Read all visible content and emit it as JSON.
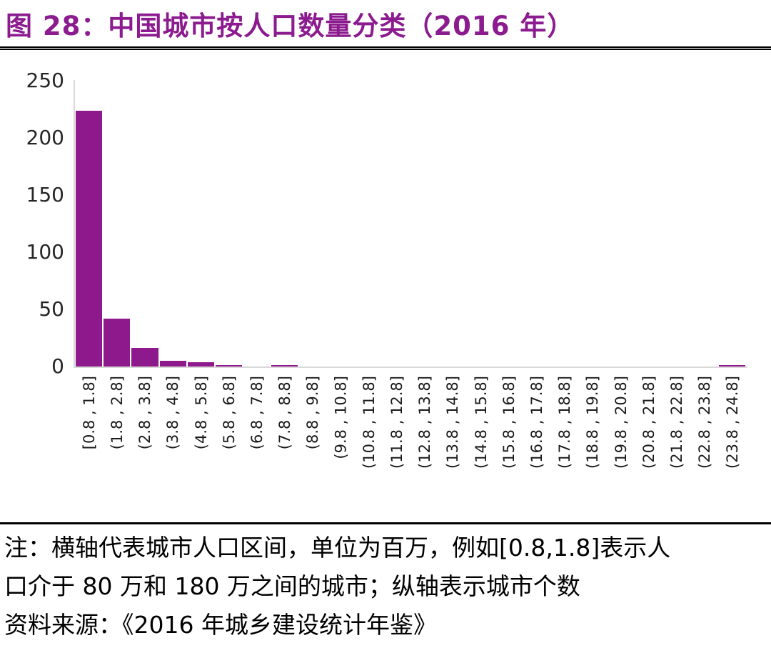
{
  "title": "图 28：中国城市按人口数量分类（2016 年）",
  "colors": {
    "title": "#8B1B8F",
    "bar": "#8E198C",
    "axis": "#D9D9D9",
    "tick_text": "#262626",
    "note_text": "#000000"
  },
  "chart_data": {
    "type": "bar",
    "title": "中国城市按人口数量分类（2016 年）",
    "xlabel": "",
    "ylabel": "",
    "categories": [
      "[0.8 , 1.8]",
      "(1.8 , 2.8]",
      "(2.8 , 3.8]",
      "(3.8 , 4.8]",
      "(4.8 , 5.8]",
      "(5.8 , 6.8]",
      "(6.8 , 7.8]",
      "(7.8 , 8.8]",
      "(8.8 , 9.8]",
      "(9.8 , 10.8]",
      "(10.8 , 11.8]",
      "(11.8 , 12.8]",
      "(12.8 , 13.8]",
      "(13.8 , 14.8]",
      "(14.8 , 15.8]",
      "(15.8 , 16.8]",
      "(16.8 , 17.8]",
      "(17.8 , 18.8]",
      "(18.8 , 19.8]",
      "(19.8 , 20.8]",
      "(20.8 , 21.8]",
      "(21.8 , 22.8]",
      "(22.8 , 23.8]",
      "(23.8 , 24.8]"
    ],
    "values": [
      224,
      42,
      16,
      5,
      4,
      1,
      0,
      1,
      0,
      0,
      0,
      0,
      0,
      0,
      0,
      0,
      0,
      0,
      0,
      0,
      0,
      0,
      0,
      1
    ],
    "ylim": [
      0,
      250
    ],
    "yticks": [
      0,
      50,
      100,
      150,
      200,
      250
    ],
    "grid": false,
    "legend": null
  },
  "notes": {
    "line1": "注：横轴代表城市人口区间，单位为百万，例如[0.8,1.8]表示人",
    "line2": "口介于 80 万和 180 万之间的城市；纵轴表示城市个数",
    "line3": "资料来源：《2016 年城乡建设统计年鉴》"
  }
}
